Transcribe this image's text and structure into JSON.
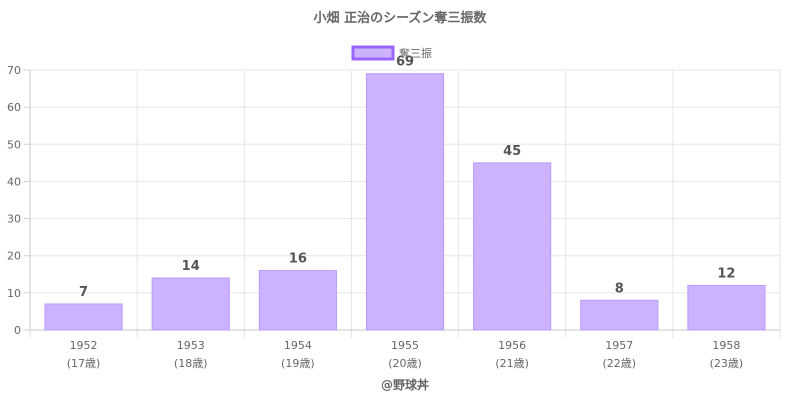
{
  "chart_data": {
    "type": "bar",
    "title": "小畑 正治のシーズン奪三振数",
    "legend": {
      "label": "奪三振",
      "placement": "top"
    },
    "categories": [
      "1952",
      "1953",
      "1954",
      "1955",
      "1956",
      "1957",
      "1958"
    ],
    "category_sublabels": [
      "(17歳)",
      "(18歳)",
      "(19歳)",
      "(20歳)",
      "(21歳)",
      "(22歳)",
      "(23歳)"
    ],
    "series": [
      {
        "name": "奪三振",
        "values": [
          7,
          14,
          16,
          69,
          45,
          8,
          12
        ]
      }
    ],
    "ylim": [
      0,
      70
    ],
    "yticks": [
      0,
      10,
      20,
      30,
      40,
      50,
      60,
      70
    ],
    "grid": true,
    "colors": {
      "bar_fill": "#cdb3ff",
      "bar_stroke": "#b899ff",
      "legend_stroke": "#9966ff"
    }
  },
  "footer": {
    "credit": "@野球丼"
  }
}
